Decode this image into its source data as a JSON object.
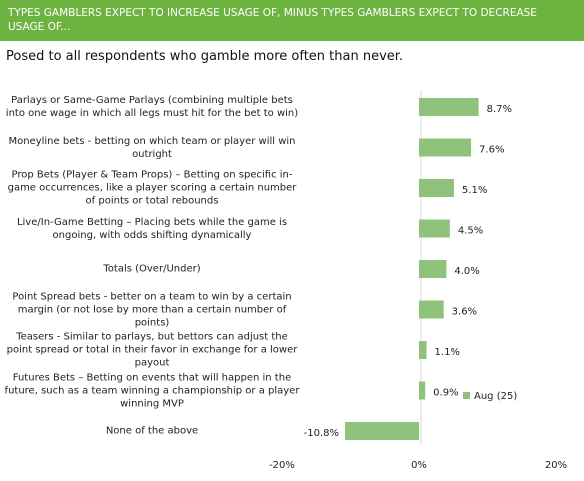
{
  "header": {
    "title": "TYPES GAMBLERS EXPECT TO INCREASE USAGE OF, MINUS TYPES GAMBLERS EXPECT TO DECREASE USAGE OF...",
    "subtitle": "Posed to all respondents who gamble more often than never."
  },
  "chart_data": {
    "type": "hbar",
    "categories": [
      "Parlays or Same-Game Parlays (combining multiple bets into one wage in which all legs must hit for the bet to win)",
      "Moneyline bets - betting on which team or player will win outright",
      "Prop Bets (Player & Team Props) – Betting on specific in-game occurrences, like a player scoring a certain number of points or total rebounds",
      "Live/In-Game Betting – Placing bets while the game is ongoing, with odds shifting dynamically",
      "Totals (Over/Under)",
      "Point Spread bets - better on a team to win by a certain margin (or not lose by more than a certain number of points)",
      "Teasers - Similar to parlays, but bettors can adjust the point spread or total in their favor in exchange for a lower payout",
      "Futures Bets – Betting on events that will happen in the future, such as a team winning a championship or a player winning MVP",
      "None of the above"
    ],
    "series": [
      {
        "name": "Aug (25)",
        "color": "#8fc27a",
        "values": [
          8.7,
          7.6,
          5.1,
          4.5,
          4.0,
          3.6,
          1.1,
          0.9,
          -10.8
        ],
        "value_labels": [
          "8.7%",
          "7.6%",
          "5.1%",
          "4.5%",
          "4.0%",
          "3.6%",
          "1.1%",
          "0.9%",
          "-10.8%"
        ]
      }
    ],
    "xlim": [
      -20.3,
      19.5
    ],
    "xticks": [
      {
        "value": -20,
        "label": "-20%"
      },
      {
        "value": 0,
        "label": "0%"
      },
      {
        "value": 20,
        "label": "20%"
      }
    ]
  }
}
